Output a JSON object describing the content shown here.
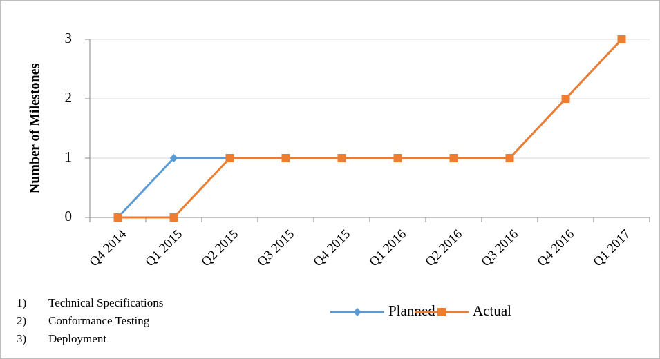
{
  "chart_data": {
    "type": "line",
    "y_label": "Number of Milestones",
    "categories": [
      "Q4 2014",
      "Q1 2015",
      "Q2 2015",
      "Q3 2015",
      "Q4 2015",
      "Q1 2016",
      "Q2 2016",
      "Q3 2016",
      "Q4 2016",
      "Q1 2017"
    ],
    "series": [
      {
        "name": "Planned",
        "color": "#5b9bd5",
        "marker": "diamond",
        "values": [
          0,
          1,
          1,
          1,
          1,
          1,
          1,
          1,
          2,
          3
        ]
      },
      {
        "name": "Actual",
        "color": "#ed7d31",
        "marker": "square",
        "values": [
          0,
          0,
          1,
          1,
          1,
          1,
          1,
          1,
          2,
          3
        ]
      }
    ],
    "ylim": [
      0,
      3
    ],
    "yticks": [
      0,
      1,
      2,
      3
    ],
    "grid": true,
    "legend": "bottom",
    "notes": [
      {
        "number": "1)",
        "text": "Technical Specifications"
      },
      {
        "number": "2)",
        "text": "Conformance Testing"
      },
      {
        "number": "3)",
        "text": "Deployment"
      }
    ]
  }
}
